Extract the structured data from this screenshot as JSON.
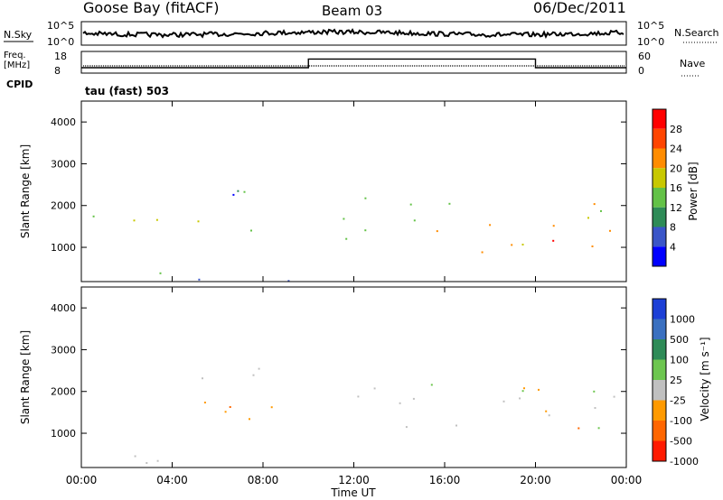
{
  "header": {
    "station": "Goose Bay (fitACF)",
    "beam": "Beam 03",
    "date": "06/Dec/2011"
  },
  "top_panel": {
    "left_label": "N.Sky",
    "right_label": "N.Search",
    "left_ticks": [
      "10^5",
      "10^0"
    ],
    "right_ticks": [
      "10^5",
      "10^0"
    ]
  },
  "freq_panel": {
    "left_label_1": "Freq.",
    "left_label_2": "[MHz]",
    "right_label": "Nave",
    "left_ticks": [
      "18",
      "8"
    ],
    "right_ticks": [
      "60",
      "0"
    ],
    "cpid_label": "CPID",
    "cpid_text": "tau (fast) 503"
  },
  "power_panel": {
    "ylabel": "Slant Range [km]",
    "yticks": [
      "1000",
      "2000",
      "3000",
      "4000"
    ],
    "colorbar_label": "Power [dB]",
    "colorbar_ticks": [
      "4",
      "8",
      "12",
      "16",
      "20",
      "24",
      "28"
    ],
    "colors": [
      "#0000ff",
      "#3a55c8",
      "#2e8b57",
      "#63c247",
      "#c8c800",
      "#ff8c00",
      "#ff4500",
      "#ff0000"
    ]
  },
  "velocity_panel": {
    "ylabel": "Slant Range [km]",
    "yticks": [
      "1000",
      "2000",
      "3000",
      "4000"
    ],
    "colorbar_label": "Velocity [m s⁻¹]",
    "colorbar_ticks": [
      "1000",
      "500",
      "100",
      "25",
      "-25",
      "-100",
      "-500",
      "-1000"
    ],
    "colors": [
      "#1c3fd6",
      "#3a70c0",
      "#2e8b57",
      "#6dc64f",
      "#c0c0c0",
      "#ff9a00",
      "#ff6600",
      "#ff1a00"
    ]
  },
  "xaxis": {
    "label": "Time UT",
    "ticks": [
      "00:00",
      "04:00",
      "08:00",
      "12:00",
      "16:00",
      "20:00",
      "00:00"
    ]
  },
  "chart_data": {
    "type": "heatmap",
    "x_range_hours": [
      0,
      24
    ],
    "y_range_km": [
      180,
      4500
    ],
    "freq_mhz": [
      {
        "start_h": 0,
        "end_h": 10,
        "value": 10.5
      },
      {
        "start_h": 10,
        "end_h": 20,
        "value": 14.5
      },
      {
        "start_h": 20,
        "end_h": 24,
        "value": 10.5
      }
    ],
    "echo_regions": [
      {
        "t0": 0.5,
        "t1": 9.0,
        "r0": 1300,
        "r1": 1800,
        "power_db": 16,
        "velocity": -100
      },
      {
        "t0": 5.0,
        "t1": 10.0,
        "r0": 2200,
        "r1": 2700,
        "power_db": 6,
        "velocity": 0
      },
      {
        "t0": 0.0,
        "t1": 10.0,
        "r0": 200,
        "r1": 500,
        "power_db": 8,
        "velocity": 0
      },
      {
        "t0": 11.5,
        "t1": 24.0,
        "r0": 900,
        "r1": 2200,
        "power_db": 18,
        "velocity": 0
      },
      {
        "t0": 19.5,
        "t1": 22.0,
        "r0": 900,
        "r1": 1400,
        "power_db": 26,
        "velocity": -100
      }
    ]
  }
}
